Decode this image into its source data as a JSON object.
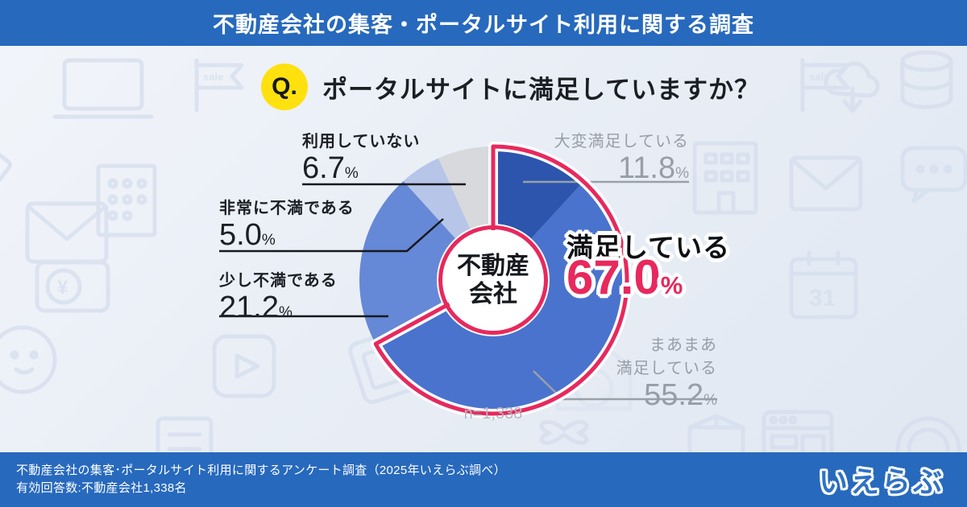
{
  "banner": {
    "title": "不動産会社の集客・ポータルサイト利用に関する調査"
  },
  "question": {
    "badge": "Q.",
    "text": "ポータルサイトに満足していますか？"
  },
  "chart_data": {
    "type": "pie",
    "style": "donut",
    "center_label_line1": "不動産",
    "center_label_line2": "会社",
    "sample_size_label": "n=1,338",
    "categories": [
      "大変満足している",
      "まあまあ満足している",
      "少し不満である",
      "非常に不満である",
      "利用していない"
    ],
    "values": [
      11.8,
      55.2,
      21.2,
      5.0,
      6.7
    ],
    "unit": "%",
    "colors": [
      "#2d55ae",
      "#4a73ce",
      "#6589d6",
      "#b6c5e8",
      "#d8d9dc"
    ],
    "highlight": {
      "label": "満足している",
      "value": "67.0",
      "unit": "%",
      "color": "#e7295d",
      "covers": [
        "大変満足している",
        "まあまあ満足している"
      ]
    }
  },
  "labels": {
    "not_using": {
      "text": "利用していない",
      "value": "6.7",
      "unit": "%"
    },
    "very_dissatisfied": {
      "text": "非常に不満である",
      "value": "5.0",
      "unit": "%"
    },
    "slightly_dissatisfied": {
      "text": "少し不満である",
      "value": "21.2",
      "unit": "%"
    },
    "very_satisfied": {
      "text": "大変満足している",
      "value": "11.8",
      "unit": "%"
    },
    "fairly_satisfied": {
      "line1": "まあまあ",
      "line2": "満足している",
      "value": "55.2",
      "unit": "%"
    },
    "highlight": {
      "text": "満足している",
      "value": "67.0",
      "unit": "%"
    }
  },
  "footer": {
    "line1": "不動産会社の集客･ポータルサイト利用に関するアンケート調査（2025年いえらぶ調べ）",
    "line2": "有効回答数:不動産会社1,338名",
    "logo_text": "いえらぶ"
  },
  "background_icons": [
    "laptop",
    "sale-flag",
    "ruler",
    "building",
    "envelope",
    "money",
    "mascot",
    "play-button",
    "tilted-card",
    "document",
    "sale-flag",
    "cloud-download",
    "database",
    "building",
    "envelope",
    "speech-bubble",
    "calendar",
    "house",
    "gift",
    "box",
    "browser-window",
    "cloud"
  ]
}
